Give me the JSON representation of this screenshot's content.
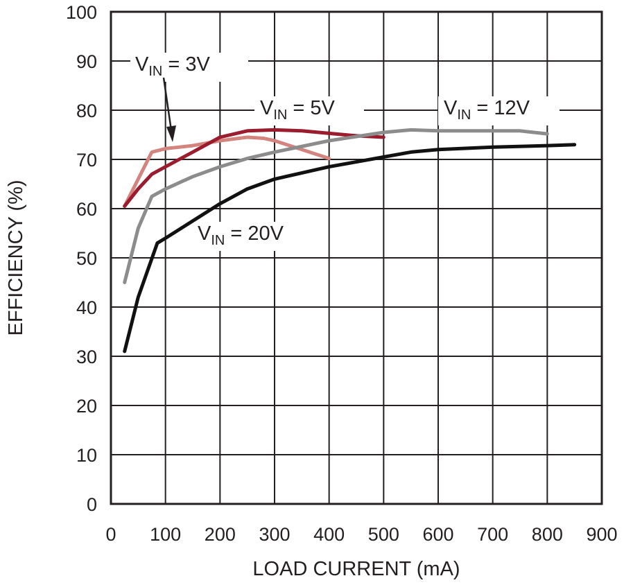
{
  "chart_data": {
    "type": "line",
    "title": "",
    "xlabel": "LOAD CURRENT (mA)",
    "ylabel": "EFFICIENCY (%)",
    "xlim": [
      0,
      900
    ],
    "ylim": [
      0,
      100
    ],
    "xticks": [
      0,
      100,
      200,
      300,
      400,
      500,
      600,
      700,
      800,
      900
    ],
    "yticks": [
      0,
      10,
      20,
      30,
      40,
      50,
      60,
      70,
      80,
      90,
      100
    ],
    "grid": true,
    "legend": "none",
    "series": [
      {
        "name": "VIN = 3V",
        "color": "#d4847f",
        "x": [
          25,
          50,
          75,
          100,
          150,
          200,
          250,
          280,
          300,
          350,
          400
        ],
        "y": [
          60.5,
          66,
          71.5,
          72.2,
          72.8,
          73.8,
          74.5,
          74.3,
          73.8,
          72,
          70.2
        ]
      },
      {
        "name": "VIN = 5V",
        "color": "#9b1c2e",
        "x": [
          25,
          50,
          75,
          100,
          150,
          200,
          250,
          300,
          350,
          400,
          450,
          500
        ],
        "y": [
          60.5,
          64,
          67,
          68.5,
          71.5,
          74.5,
          75.8,
          76,
          75.8,
          75.3,
          74.8,
          74.5
        ]
      },
      {
        "name": "VIN = 12V",
        "color": "#8c8c8c",
        "x": [
          25,
          50,
          75,
          100,
          150,
          200,
          250,
          300,
          400,
          500,
          550,
          600,
          700,
          750,
          800
        ],
        "y": [
          45,
          56,
          62.5,
          64,
          66.5,
          68.5,
          70.2,
          71.5,
          73.8,
          75.5,
          76,
          75.8,
          75.8,
          75.8,
          75.2
        ]
      },
      {
        "name": "VIN = 20V",
        "color": "#111111",
        "x": [
          25,
          50,
          85,
          100,
          150,
          200,
          250,
          300,
          400,
          500,
          550,
          600,
          700,
          800,
          850
        ],
        "y": [
          31,
          42,
          53,
          54,
          57.5,
          61,
          64,
          66,
          68.5,
          70.5,
          71.5,
          72,
          72.5,
          72.8,
          73
        ]
      }
    ],
    "annotations": [
      {
        "id": "vin3",
        "main": "V",
        "sub": "IN",
        "rest": " = 3V"
      },
      {
        "id": "vin5",
        "main": "V",
        "sub": "IN",
        "rest": " = 5V"
      },
      {
        "id": "vin12",
        "main": "V",
        "sub": "IN",
        "rest": " = 12V"
      },
      {
        "id": "vin20",
        "main": "V",
        "sub": "IN",
        "rest": " = 20V"
      }
    ]
  }
}
